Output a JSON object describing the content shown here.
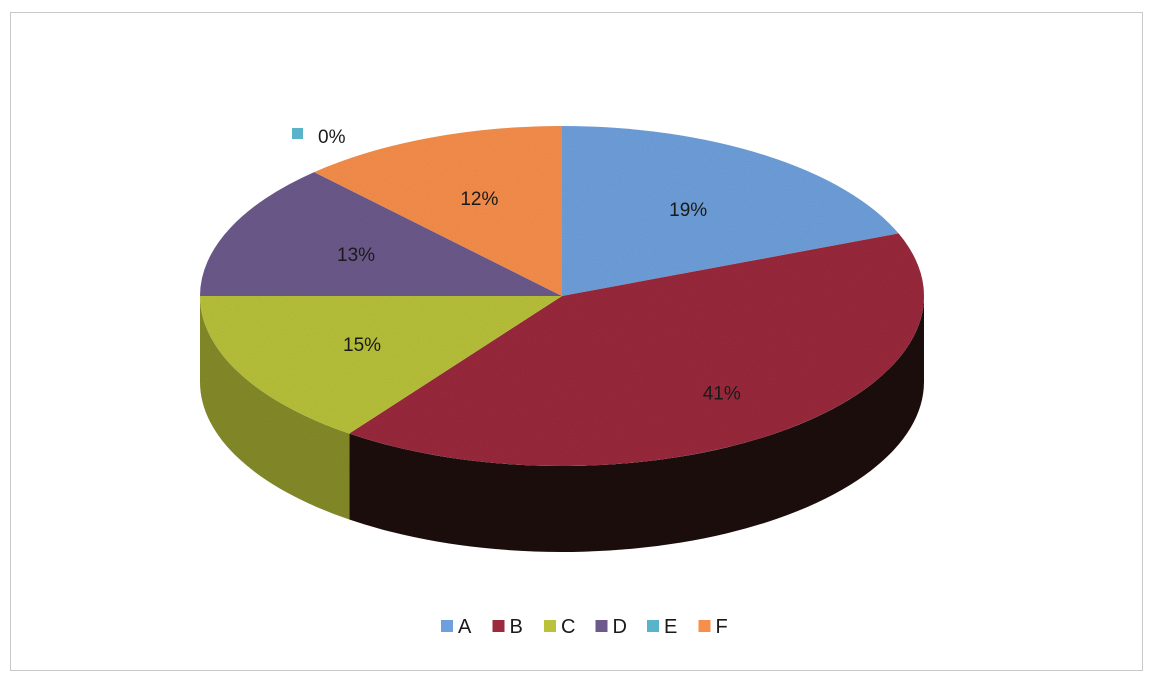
{
  "chart_data": {
    "type": "pie",
    "style": "3d",
    "categories": [
      "A",
      "B",
      "C",
      "D",
      "E",
      "F"
    ],
    "values": [
      19,
      41,
      15,
      13,
      0,
      12
    ],
    "labels": [
      "19%",
      "41%",
      "15%",
      "13%",
      "0%",
      "12%"
    ],
    "colors": [
      "#6fa0dc",
      "#9a2a3c",
      "#b9c23a",
      "#6c5a8c",
      "#5ab4c9",
      "#f78f4c"
    ],
    "legend": {
      "position": "bottom",
      "entries": [
        "A",
        "B",
        "C",
        "D",
        "E",
        "F"
      ]
    },
    "title": ""
  }
}
